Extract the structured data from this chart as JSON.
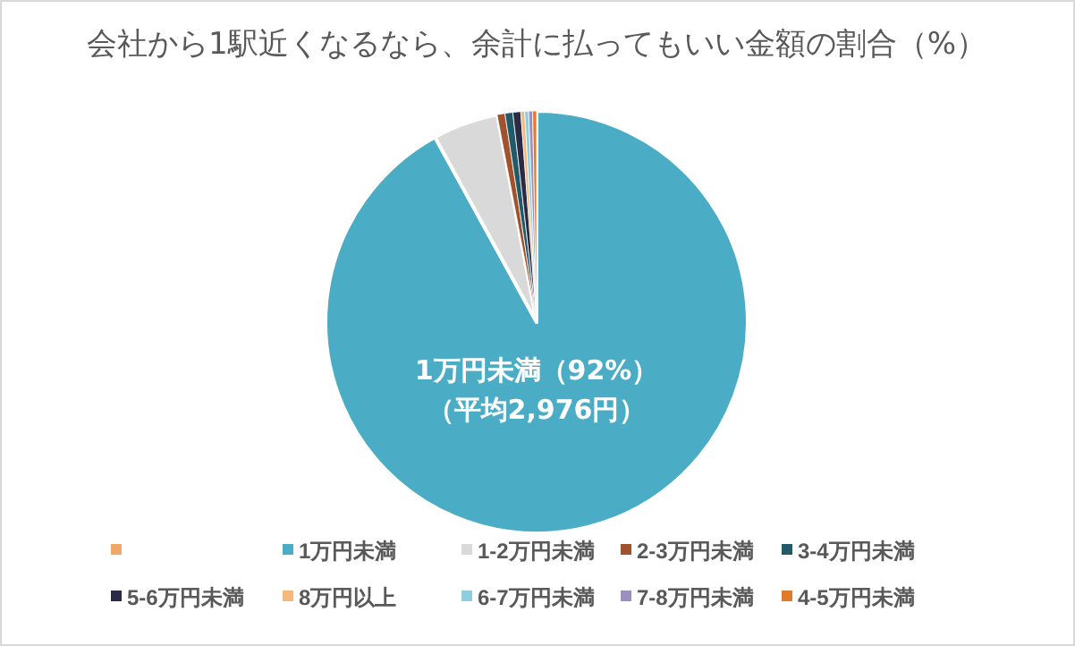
{
  "chart_data": {
    "type": "pie",
    "title": "会社から1駅近くなるなら、余計に払ってもいい金額の割合（%）",
    "categories": [
      null,
      "1万円未満",
      "1-2万円未満",
      "2-3万円未満",
      "3-4万円未満",
      "5-6万円未満",
      "8万円以上",
      "6-7万円未満",
      "7-8万円未満",
      "4-5万円未満"
    ],
    "values": [
      0,
      92,
      5,
      0.6,
      0.6,
      0.6,
      0.3,
      0.3,
      0.3,
      0.3
    ],
    "colors": [
      "#f0a868",
      "#4bacc6",
      "#d9d9d9",
      "#a0522d",
      "#215a69",
      "#2b2b45",
      "#f5b97f",
      "#8ccfe0",
      "#9c8fc0",
      "#e07b2a"
    ],
    "annotations": [
      "1万円未満（92%）",
      "（平均2,976円）"
    ],
    "legend": "bottom"
  }
}
